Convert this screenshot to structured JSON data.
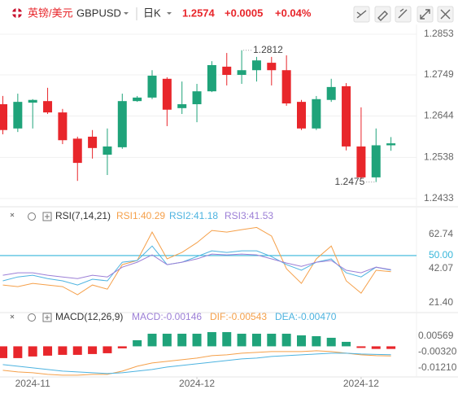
{
  "header": {
    "pair": "英镑/美元",
    "symbol": "GBPUSD",
    "period": "日K",
    "price": "1.2574",
    "change": "+0.0005",
    "change_pct": "+0.04%"
  },
  "chart_data": [
    {
      "type": "candlestick",
      "up_color": "#1fa37a",
      "down_color": "#e8262b",
      "grid": true,
      "open": [
        1.2674,
        1.2612,
        1.2678,
        1.2682,
        1.2653,
        1.2586,
        1.2591,
        1.2545,
        1.2564,
        1.2682,
        1.2691,
        1.2739,
        1.2664,
        1.2674,
        1.2707,
        1.277,
        1.2749,
        1.2761,
        1.278,
        1.2761,
        1.268,
        1.2612,
        1.2685,
        1.272,
        1.2566,
        1.2487,
        1.2569
      ],
      "high": [
        1.2695,
        1.2701,
        1.2687,
        1.2716,
        1.2662,
        1.2591,
        1.2608,
        1.2612,
        1.2701,
        1.2695,
        1.2761,
        1.2743,
        1.2732,
        1.2726,
        1.2784,
        1.2805,
        1.2812,
        1.2795,
        1.2795,
        1.2799,
        1.2685,
        1.2695,
        1.2739,
        1.2728,
        1.2666,
        1.2612,
        1.259
      ],
      "low": [
        1.2597,
        1.2603,
        1.2612,
        1.2649,
        1.2572,
        1.2478,
        1.2535,
        1.2493,
        1.256,
        1.268,
        1.2687,
        1.2618,
        1.2649,
        1.2628,
        1.2705,
        1.2722,
        1.2726,
        1.2732,
        1.2722,
        1.267,
        1.2608,
        1.2608,
        1.268,
        1.2556,
        1.2483,
        1.2475,
        1.2555
      ],
      "close": [
        1.2608,
        1.268,
        1.2685,
        1.2653,
        1.2582,
        1.2524,
        1.2562,
        1.2566,
        1.2682,
        1.2691,
        1.2747,
        1.266,
        1.2674,
        1.2707,
        1.2774,
        1.2749,
        1.2761,
        1.2786,
        1.2761,
        1.2676,
        1.2612,
        1.2687,
        1.2718,
        1.2566,
        1.2487,
        1.2569,
        1.2574
      ],
      "ylim": [
        1.2416,
        1.2878
      ],
      "yticks": [
        1.2853,
        1.2749,
        1.2644,
        1.2538,
        1.2433
      ],
      "high_label": "1.2812",
      "low_label": "1.2475"
    },
    {
      "type": "line",
      "title": "RSI(7,14,21)",
      "series": [
        {
          "name": "RSI1:40.29",
          "color": "#f5a04a",
          "values": [
            32.2,
            31.2,
            33.2,
            32.2,
            31.2,
            26.3,
            32.2,
            29.7,
            44.5,
            47.0,
            64.2,
            48.0,
            51.9,
            57.8,
            65.2,
            64.2,
            65.7,
            67.0,
            61.8,
            42.0,
            33.2,
            48.0,
            55.8,
            34.7,
            27.3,
            41.1,
            40.29
          ]
        },
        {
          "name": "RSI2:41.18",
          "color": "#4db3e0",
          "values": [
            34.7,
            37.1,
            38.1,
            36.1,
            34.7,
            32.2,
            35.7,
            34.7,
            46.0,
            47.0,
            55.8,
            44.5,
            46.0,
            49.4,
            52.9,
            51.9,
            52.9,
            52.9,
            49.4,
            44.5,
            41.1,
            46.0,
            48.0,
            39.6,
            37.1,
            43.0,
            41.18
          ]
        },
        {
          "name": "RSI3:41.53",
          "color": "#9c7fd6",
          "values": [
            38.1,
            39.6,
            39.6,
            38.1,
            37.1,
            36.1,
            38.1,
            37.1,
            43.0,
            46.0,
            50.4,
            44.5,
            46.0,
            48.0,
            50.9,
            50.4,
            50.9,
            50.4,
            48.0,
            45.5,
            43.5,
            46.0,
            47.0,
            41.1,
            39.6,
            43.0,
            41.53
          ]
        }
      ],
      "ylim": [
        16.5,
        67.7
      ],
      "yticks": [
        62.74,
        {
          "value": 50,
          "label": "50.00",
          "color": "#36b6d9"
        },
        42.07,
        {
          "value": 21.4,
          "label": "21.40"
        }
      ]
    },
    {
      "type": "macd",
      "title": "MACD(12,26,9)",
      "histogram": {
        "name": "MACD:-0.00146",
        "legend_color": "#9c7fd6",
        "up_color": "#1fa37a",
        "down_color": "#e8262b",
        "values": [
          -0.00661,
          -0.00661,
          -0.0057,
          -0.00524,
          -0.00479,
          -0.00479,
          -0.00433,
          -0.00388,
          -0.00114,
          0.00342,
          0.00707,
          0.00707,
          0.00707,
          0.00707,
          0.00798,
          0.00798,
          0.00707,
          0.00707,
          0.00707,
          0.00707,
          0.00616,
          0.0057,
          0.00479,
          0.00251,
          -0.0009,
          -0.00146,
          -0.00146
        ]
      },
      "series": [
        {
          "name": "DIF:-0.00543",
          "color": "#f5a04a",
          "values": [
            -0.01345,
            -0.01436,
            -0.01482,
            -0.01573,
            -0.01619,
            -0.01619,
            -0.01573,
            -0.01573,
            -0.01391,
            -0.01117,
            -0.00935,
            -0.00844,
            -0.00752,
            -0.00661,
            -0.00524,
            -0.00479,
            -0.00388,
            -0.00342,
            -0.00296,
            -0.00296,
            -0.00296,
            -0.00251,
            -0.00296,
            -0.00388,
            -0.00479,
            -0.00524,
            -0.00543
          ]
        },
        {
          "name": "DEA:-0.00470",
          "color": "#4db3e0",
          "values": [
            -0.01026,
            -0.01117,
            -0.01208,
            -0.013,
            -0.01391,
            -0.01436,
            -0.01482,
            -0.01528,
            -0.01482,
            -0.01391,
            -0.013,
            -0.01163,
            -0.01072,
            -0.0098,
            -0.00889,
            -0.00798,
            -0.00707,
            -0.00661,
            -0.0057,
            -0.00524,
            -0.00479,
            -0.00433,
            -0.00388,
            -0.00388,
            -0.00433,
            -0.00456,
            -0.0047
          ]
        }
      ],
      "ylim": [
        -0.0167,
        0.0107
      ],
      "yticks": [
        0.00569,
        {
          "value": -0.0032,
          "label": "-0.00320"
        },
        {
          "value": -0.0121,
          "label": "-0.01210"
        }
      ],
      "categories": [
        null,
        null,
        "2024-11",
        null,
        null,
        null,
        null,
        null,
        null,
        null,
        null,
        null,
        null,
        "2024-12",
        null,
        null,
        null,
        null,
        null,
        null,
        null,
        null,
        null,
        null,
        "2024-12",
        null,
        null
      ]
    }
  ]
}
